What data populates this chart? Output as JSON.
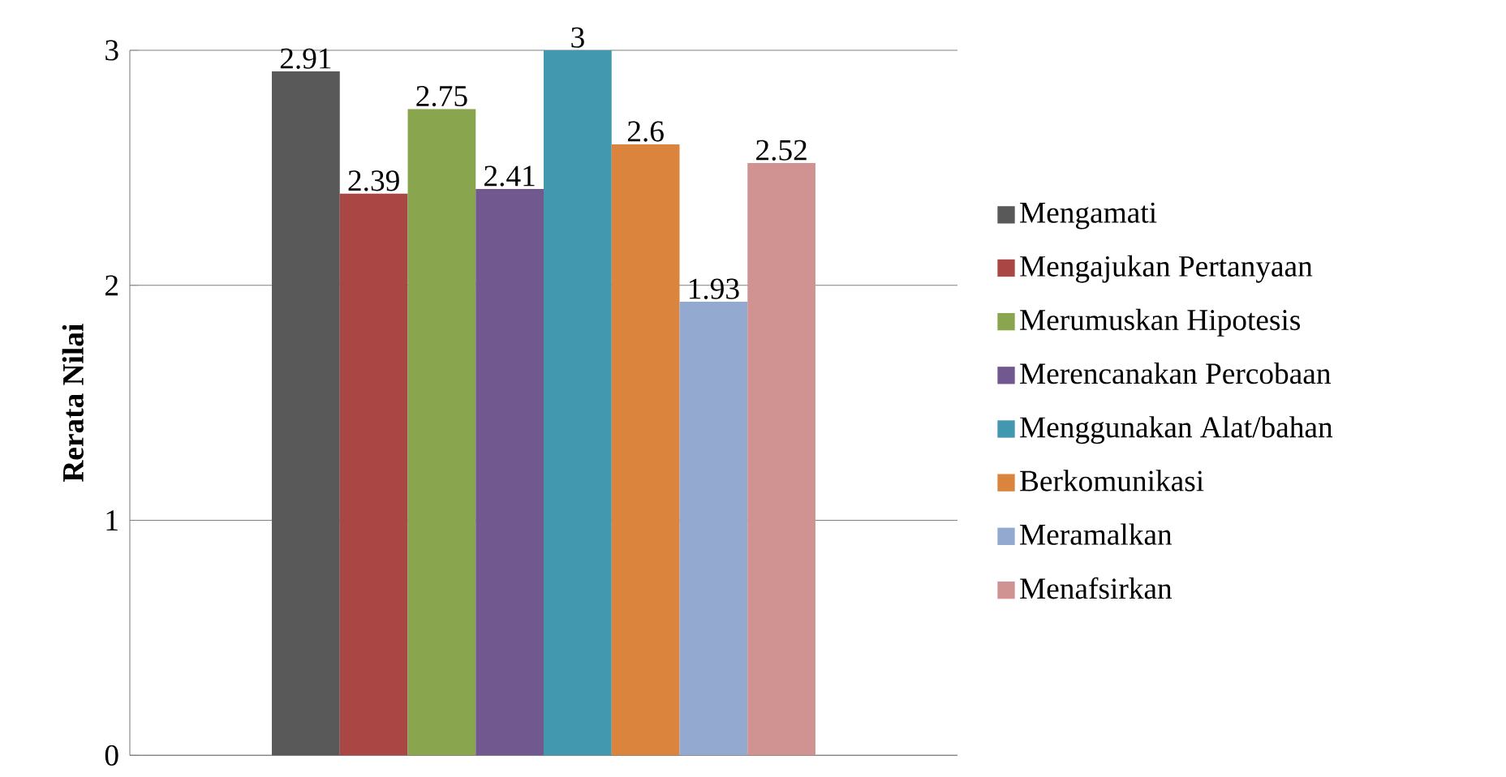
{
  "chart_data": {
    "type": "bar",
    "ylabel": "Rerata  Nilai",
    "categories": [
      null
    ],
    "series": [
      {
        "name": "Mengamati",
        "color": "#595959",
        "values": [
          2.91
        ]
      },
      {
        "name": "Mengajukan Pertanyaan",
        "color": "#aa4644",
        "values": [
          2.39
        ]
      },
      {
        "name": "Merumuskan Hipotesis",
        "color": "#89a54e",
        "values": [
          2.75
        ]
      },
      {
        "name": "Merencanakan Percobaan",
        "color": "#71588f",
        "values": [
          2.41
        ]
      },
      {
        "name": "Menggunakan Alat/bahan",
        "color": "#4198af",
        "values": [
          3
        ]
      },
      {
        "name": "Berkomunikasi",
        "color": "#db843d",
        "values": [
          2.6
        ]
      },
      {
        "name": "Meramalkan",
        "color": "#93a9cf",
        "values": [
          1.93
        ]
      },
      {
        "name": "Menafsirkan",
        "color": "#d19392",
        "values": [
          2.52
        ]
      }
    ],
    "ylim": [
      0,
      3
    ],
    "yticks": [
      0,
      1,
      2,
      3
    ],
    "grid": "y",
    "legend": "right",
    "data_labels": true
  }
}
